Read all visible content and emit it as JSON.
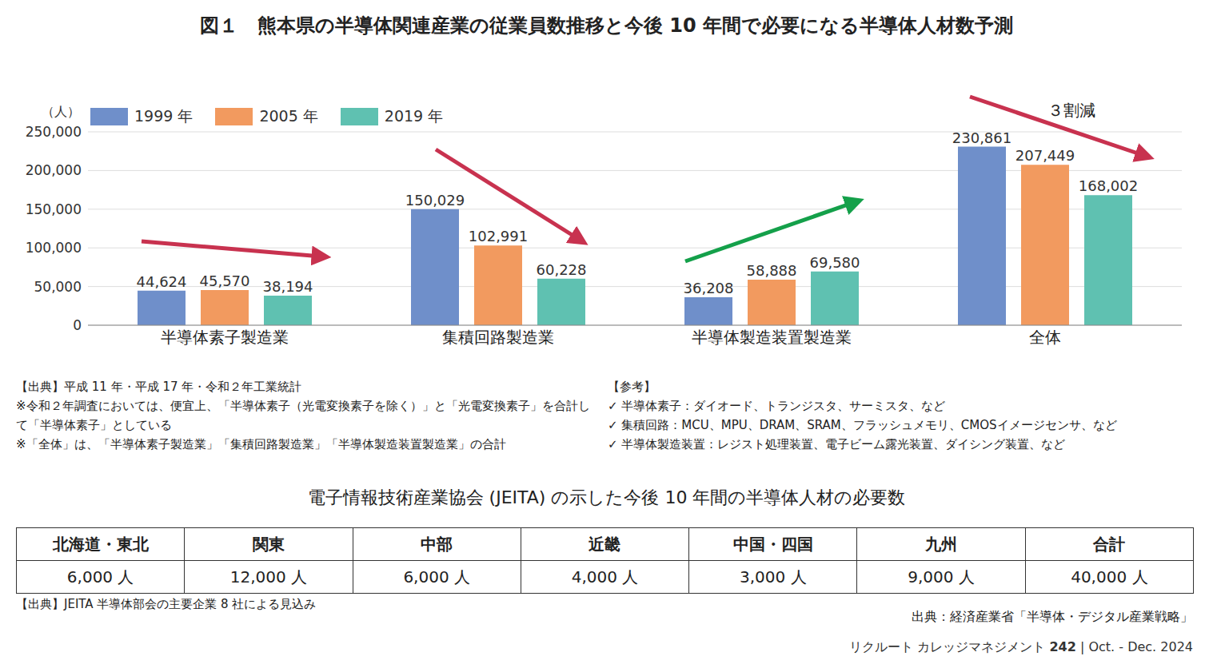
{
  "title": "図１　熊本県の半導体関連産業の従業員数推移と今後 10 年間で必要になる半導体人材数予測",
  "chart_data": {
    "type": "bar",
    "ylabel": "（人）",
    "categories": [
      "半導体素子製造業",
      "集積回路製造業",
      "半導体製造装置製造業",
      "全体"
    ],
    "series": [
      {
        "name": "1999 年",
        "color": "#6f8fca",
        "values": [
          44624,
          150029,
          36208,
          230861
        ],
        "value_labels": [
          "44,624",
          "150,029",
          "36,208",
          "230,861"
        ]
      },
      {
        "name": "2005 年",
        "color": "#f29a5f",
        "values": [
          45570,
          102991,
          58888,
          207449
        ],
        "value_labels": [
          "45,570",
          "102,991",
          "58,888",
          "207,449"
        ]
      },
      {
        "name": "2019 年",
        "color": "#5fc1b1",
        "values": [
          38194,
          60228,
          69580,
          168002
        ],
        "value_labels": [
          "38,194",
          "60,228",
          "69,580",
          "168,002"
        ]
      }
    ],
    "ylim": [
      0,
      250000
    ],
    "yticks": [
      0,
      {
        "value": 50000,
        "label": "50,000"
      },
      {
        "value": 100000,
        "label": "100,000"
      },
      {
        "value": 150000,
        "label": "150,000"
      },
      {
        "value": 200000,
        "label": "200,000"
      },
      {
        "value": 250000,
        "label": "250,000"
      }
    ],
    "grid": true,
    "legend": "top-left",
    "data_labels": true,
    "annotations": [
      "３割減"
    ]
  },
  "notes": {
    "source": [
      "【出典】平成 11 年・平成 17 年・令和２年工業統計",
      "※令和２年調査においては、便宜上、「半導体素子（光電変換素子を除く）」と「光電変換素子」を合計して「半導体素子」としている",
      "※「全体」は、「半導体素子製造業」「集積回路製造業」「半導体製造装置製造業」の合計"
    ],
    "reference": [
      "【参考】",
      "✓ 半導体素子：ダイオード、トランジスタ、サーミスタ、など",
      "✓ 集積回路：MCU、MPU、DRAM、SRAM、フラッシュメモリ、CMOSイメージセンサ、など",
      "✓ 半導体製造装置：レジスト処理装置、電子ビーム露光装置、ダイシング装置、など"
    ]
  },
  "table": {
    "title": "電子情報技術産業協会 (JEITA) の示した今後 10 年間の半導体人材の必要数",
    "header": [
      "北海道・東北",
      "関東",
      "中部",
      "近畿",
      "中国・四国",
      "九州",
      "合計"
    ],
    "rows": [
      [
        "6,000 人",
        "12,000 人",
        "6,000 人",
        "4,000 人",
        "3,000 人",
        "9,000 人",
        "40,000 人"
      ]
    ],
    "source": "【出典】JEITA 半導体部会の主要企業 8 社による見込み"
  },
  "footer": {
    "source": "出典：経済産業省「半導体・デジタル産業戦略」",
    "publication": "リクルート カレッジマネジメント",
    "issue": "242",
    "separator": "|",
    "date": "Oct. - Dec. 2024"
  }
}
